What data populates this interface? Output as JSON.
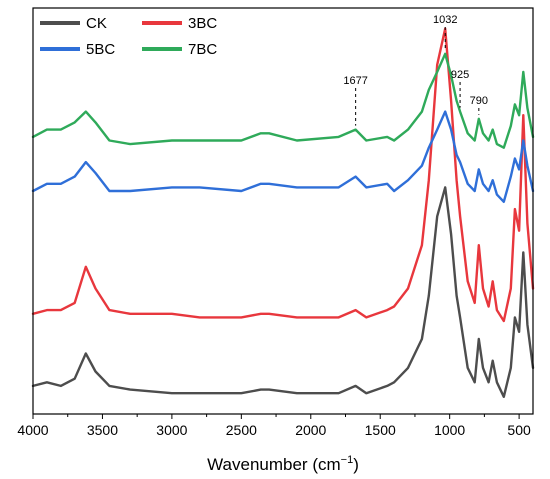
{
  "chart_data": {
    "type": "line",
    "title": "",
    "xlabel": "Wavenumber (cm",
    "xlabel_sup": "−1",
    "xlabel_end": ")",
    "ylabel": "",
    "xlim": [
      4000,
      400
    ],
    "x_reversed": true,
    "xticks": [
      4000,
      3500,
      3000,
      2500,
      2000,
      1500,
      1000,
      500
    ],
    "xtick_labels": [
      "4000",
      "3500",
      "3000",
      "2500",
      "2000",
      "1500",
      "1000",
      "500"
    ],
    "ylim": [
      0,
      1
    ],
    "yticks": false,
    "grid": false,
    "legend_position": "top-left",
    "series": [
      {
        "name": "CK",
        "color": "#4d4d4d",
        "offset": 0.02,
        "points": [
          [
            4000,
            0.03
          ],
          [
            3900,
            0.04
          ],
          [
            3800,
            0.03
          ],
          [
            3700,
            0.05
          ],
          [
            3620,
            0.12
          ],
          [
            3550,
            0.07
          ],
          [
            3450,
            0.03
          ],
          [
            3300,
            0.02
          ],
          [
            3000,
            0.01
          ],
          [
            2800,
            0.01
          ],
          [
            2500,
            0.01
          ],
          [
            2360,
            0.02
          ],
          [
            2300,
            0.02
          ],
          [
            2100,
            0.01
          ],
          [
            1800,
            0.01
          ],
          [
            1677,
            0.03
          ],
          [
            1600,
            0.01
          ],
          [
            1450,
            0.03
          ],
          [
            1400,
            0.04
          ],
          [
            1300,
            0.08
          ],
          [
            1200,
            0.16
          ],
          [
            1150,
            0.28
          ],
          [
            1090,
            0.5
          ],
          [
            1032,
            0.58
          ],
          [
            990,
            0.45
          ],
          [
            950,
            0.28
          ],
          [
            925,
            0.22
          ],
          [
            870,
            0.08
          ],
          [
            820,
            0.04
          ],
          [
            790,
            0.16
          ],
          [
            760,
            0.08
          ],
          [
            720,
            0.04
          ],
          [
            690,
            0.1
          ],
          [
            660,
            0.04
          ],
          [
            610,
            0.0
          ],
          [
            560,
            0.08
          ],
          [
            530,
            0.22
          ],
          [
            500,
            0.18
          ],
          [
            470,
            0.4
          ],
          [
            440,
            0.2
          ],
          [
            400,
            0.08
          ]
        ]
      },
      {
        "name": "3BC",
        "color": "#e8373d",
        "offset": 0.22,
        "points": [
          [
            4000,
            0.03
          ],
          [
            3900,
            0.04
          ],
          [
            3800,
            0.04
          ],
          [
            3700,
            0.06
          ],
          [
            3620,
            0.16
          ],
          [
            3550,
            0.1
          ],
          [
            3450,
            0.04
          ],
          [
            3300,
            0.03
          ],
          [
            3000,
            0.03
          ],
          [
            2800,
            0.02
          ],
          [
            2500,
            0.02
          ],
          [
            2360,
            0.03
          ],
          [
            2300,
            0.03
          ],
          [
            2100,
            0.02
          ],
          [
            1800,
            0.02
          ],
          [
            1677,
            0.04
          ],
          [
            1600,
            0.02
          ],
          [
            1450,
            0.04
          ],
          [
            1400,
            0.05
          ],
          [
            1300,
            0.1
          ],
          [
            1200,
            0.22
          ],
          [
            1150,
            0.4
          ],
          [
            1090,
            0.72
          ],
          [
            1032,
            0.82
          ],
          [
            990,
            0.62
          ],
          [
            950,
            0.4
          ],
          [
            925,
            0.3
          ],
          [
            870,
            0.12
          ],
          [
            820,
            0.06
          ],
          [
            790,
            0.22
          ],
          [
            760,
            0.1
          ],
          [
            720,
            0.05
          ],
          [
            690,
            0.12
          ],
          [
            660,
            0.04
          ],
          [
            610,
            0.01
          ],
          [
            560,
            0.1
          ],
          [
            530,
            0.32
          ],
          [
            500,
            0.26
          ],
          [
            470,
            0.58
          ],
          [
            440,
            0.28
          ],
          [
            400,
            0.1
          ]
        ]
      },
      {
        "name": "5BC",
        "color": "#2f6fd8",
        "offset": 0.59,
        "points": [
          [
            4000,
            0.0
          ],
          [
            3900,
            0.02
          ],
          [
            3800,
            0.02
          ],
          [
            3700,
            0.04
          ],
          [
            3620,
            0.08
          ],
          [
            3550,
            0.05
          ],
          [
            3450,
            0.0
          ],
          [
            3300,
            0.0
          ],
          [
            3000,
            0.01
          ],
          [
            2800,
            0.01
          ],
          [
            2500,
            0.0
          ],
          [
            2360,
            0.02
          ],
          [
            2300,
            0.02
          ],
          [
            2100,
            0.01
          ],
          [
            1800,
            0.01
          ],
          [
            1677,
            0.04
          ],
          [
            1600,
            0.01
          ],
          [
            1450,
            0.02
          ],
          [
            1400,
            0.0
          ],
          [
            1300,
            0.03
          ],
          [
            1200,
            0.07
          ],
          [
            1150,
            0.12
          ],
          [
            1090,
            0.17
          ],
          [
            1032,
            0.22
          ],
          [
            990,
            0.17
          ],
          [
            950,
            0.1
          ],
          [
            925,
            0.08
          ],
          [
            870,
            0.02
          ],
          [
            820,
            0.0
          ],
          [
            790,
            0.06
          ],
          [
            760,
            0.02
          ],
          [
            720,
            0.0
          ],
          [
            690,
            0.03
          ],
          [
            660,
            -0.01
          ],
          [
            610,
            -0.03
          ],
          [
            560,
            0.04
          ],
          [
            530,
            0.09
          ],
          [
            500,
            0.06
          ],
          [
            470,
            0.14
          ],
          [
            440,
            0.07
          ],
          [
            400,
            0.0
          ]
        ]
      },
      {
        "name": "7BC",
        "color": "#2faa5a",
        "offset": 0.72,
        "points": [
          [
            4000,
            0.02
          ],
          [
            3900,
            0.04
          ],
          [
            3800,
            0.04
          ],
          [
            3700,
            0.06
          ],
          [
            3620,
            0.09
          ],
          [
            3550,
            0.06
          ],
          [
            3450,
            0.01
          ],
          [
            3300,
            0.0
          ],
          [
            3000,
            0.01
          ],
          [
            2800,
            0.01
          ],
          [
            2500,
            0.01
          ],
          [
            2360,
            0.03
          ],
          [
            2300,
            0.03
          ],
          [
            2100,
            0.01
          ],
          [
            1800,
            0.02
          ],
          [
            1677,
            0.04
          ],
          [
            1600,
            0.01
          ],
          [
            1450,
            0.02
          ],
          [
            1400,
            0.01
          ],
          [
            1300,
            0.04
          ],
          [
            1200,
            0.09
          ],
          [
            1150,
            0.15
          ],
          [
            1090,
            0.2
          ],
          [
            1032,
            0.25
          ],
          [
            990,
            0.19
          ],
          [
            950,
            0.12
          ],
          [
            925,
            0.09
          ],
          [
            870,
            0.03
          ],
          [
            820,
            0.01
          ],
          [
            790,
            0.07
          ],
          [
            760,
            0.03
          ],
          [
            720,
            0.01
          ],
          [
            690,
            0.04
          ],
          [
            660,
            0.0
          ],
          [
            610,
            -0.01
          ],
          [
            560,
            0.05
          ],
          [
            530,
            0.11
          ],
          [
            500,
            0.08
          ],
          [
            470,
            0.2
          ],
          [
            440,
            0.1
          ],
          [
            400,
            0.02
          ]
        ]
      }
    ],
    "annotations": [
      {
        "label": "1677",
        "x": 1677,
        "series": "7BC"
      },
      {
        "label": "1032",
        "x": 1032,
        "series": "7BC"
      },
      {
        "label": "925",
        "x": 925,
        "series": "7BC"
      },
      {
        "label": "790",
        "x": 790,
        "series": "7BC"
      }
    ]
  }
}
